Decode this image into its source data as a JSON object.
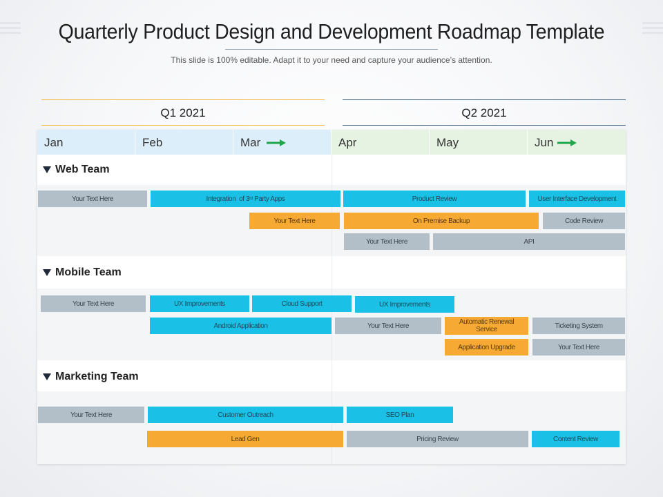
{
  "slide": {
    "title": "Quarterly Product Design and Development Roadmap Template",
    "subtitle": "This slide is 100% editable. Adapt it to your need and capture your audience’s attention."
  },
  "colors": {
    "q1_line": "#f5b94a",
    "q2_line": "#4b6a88",
    "month_q1": "#dbeefa",
    "month_q2": "#e6f3e2",
    "task_cyan": "#1ac0e6",
    "task_orange": "#f7aa33",
    "task_gray": "#b3bfc8",
    "arrow_green": "#1fa54a"
  },
  "quarters": [
    {
      "label": "Q1 2021"
    },
    {
      "label": "Q2 2021"
    }
  ],
  "months": [
    "Jan",
    "Feb",
    "Mar",
    "Apr",
    "May",
    "Jun"
  ],
  "teams": [
    {
      "name": "Web Team",
      "tasks": [
        {
          "label": "Your Text Here",
          "color": "gray"
        },
        {
          "label": "Integration  of 3rd Party Apps",
          "color": "cyan"
        },
        {
          "label": "Product Review",
          "color": "cyan"
        },
        {
          "label": "User Interface  Development",
          "color": "cyan"
        },
        {
          "label": "Your Text Here",
          "color": "orange"
        },
        {
          "label": "On Premise Backup",
          "color": "orange"
        },
        {
          "label": "Code Review",
          "color": "gray"
        },
        {
          "label": "Your Text Here",
          "color": "gray"
        },
        {
          "label": "API",
          "color": "gray"
        }
      ]
    },
    {
      "name": "Mobile Team",
      "tasks": [
        {
          "label": "Your Text Here",
          "color": "gray"
        },
        {
          "label": "UX Improvements",
          "color": "cyan"
        },
        {
          "label": "Cloud Support",
          "color": "cyan"
        },
        {
          "label": "UX Improvements",
          "color": "cyan"
        },
        {
          "label": "Android  Application",
          "color": "cyan"
        },
        {
          "label": "Your Text Here",
          "color": "gray"
        },
        {
          "label": "Automatic  Renewal Service",
          "color": "orange"
        },
        {
          "label": "Ticketing  System",
          "color": "gray"
        },
        {
          "label": "Application  Upgrade",
          "color": "orange"
        },
        {
          "label": "Your Text Here",
          "color": "gray"
        }
      ]
    },
    {
      "name": "Marketing Team",
      "tasks": [
        {
          "label": "Your Text Here",
          "color": "gray"
        },
        {
          "label": "Customer Outreach",
          "color": "cyan"
        },
        {
          "label": "SEO Plan",
          "color": "cyan"
        },
        {
          "label": "Lead  Gen",
          "color": "orange"
        },
        {
          "label": "Pricing Review",
          "color": "gray"
        },
        {
          "label": "Content Review",
          "color": "cyan"
        }
      ]
    }
  ]
}
